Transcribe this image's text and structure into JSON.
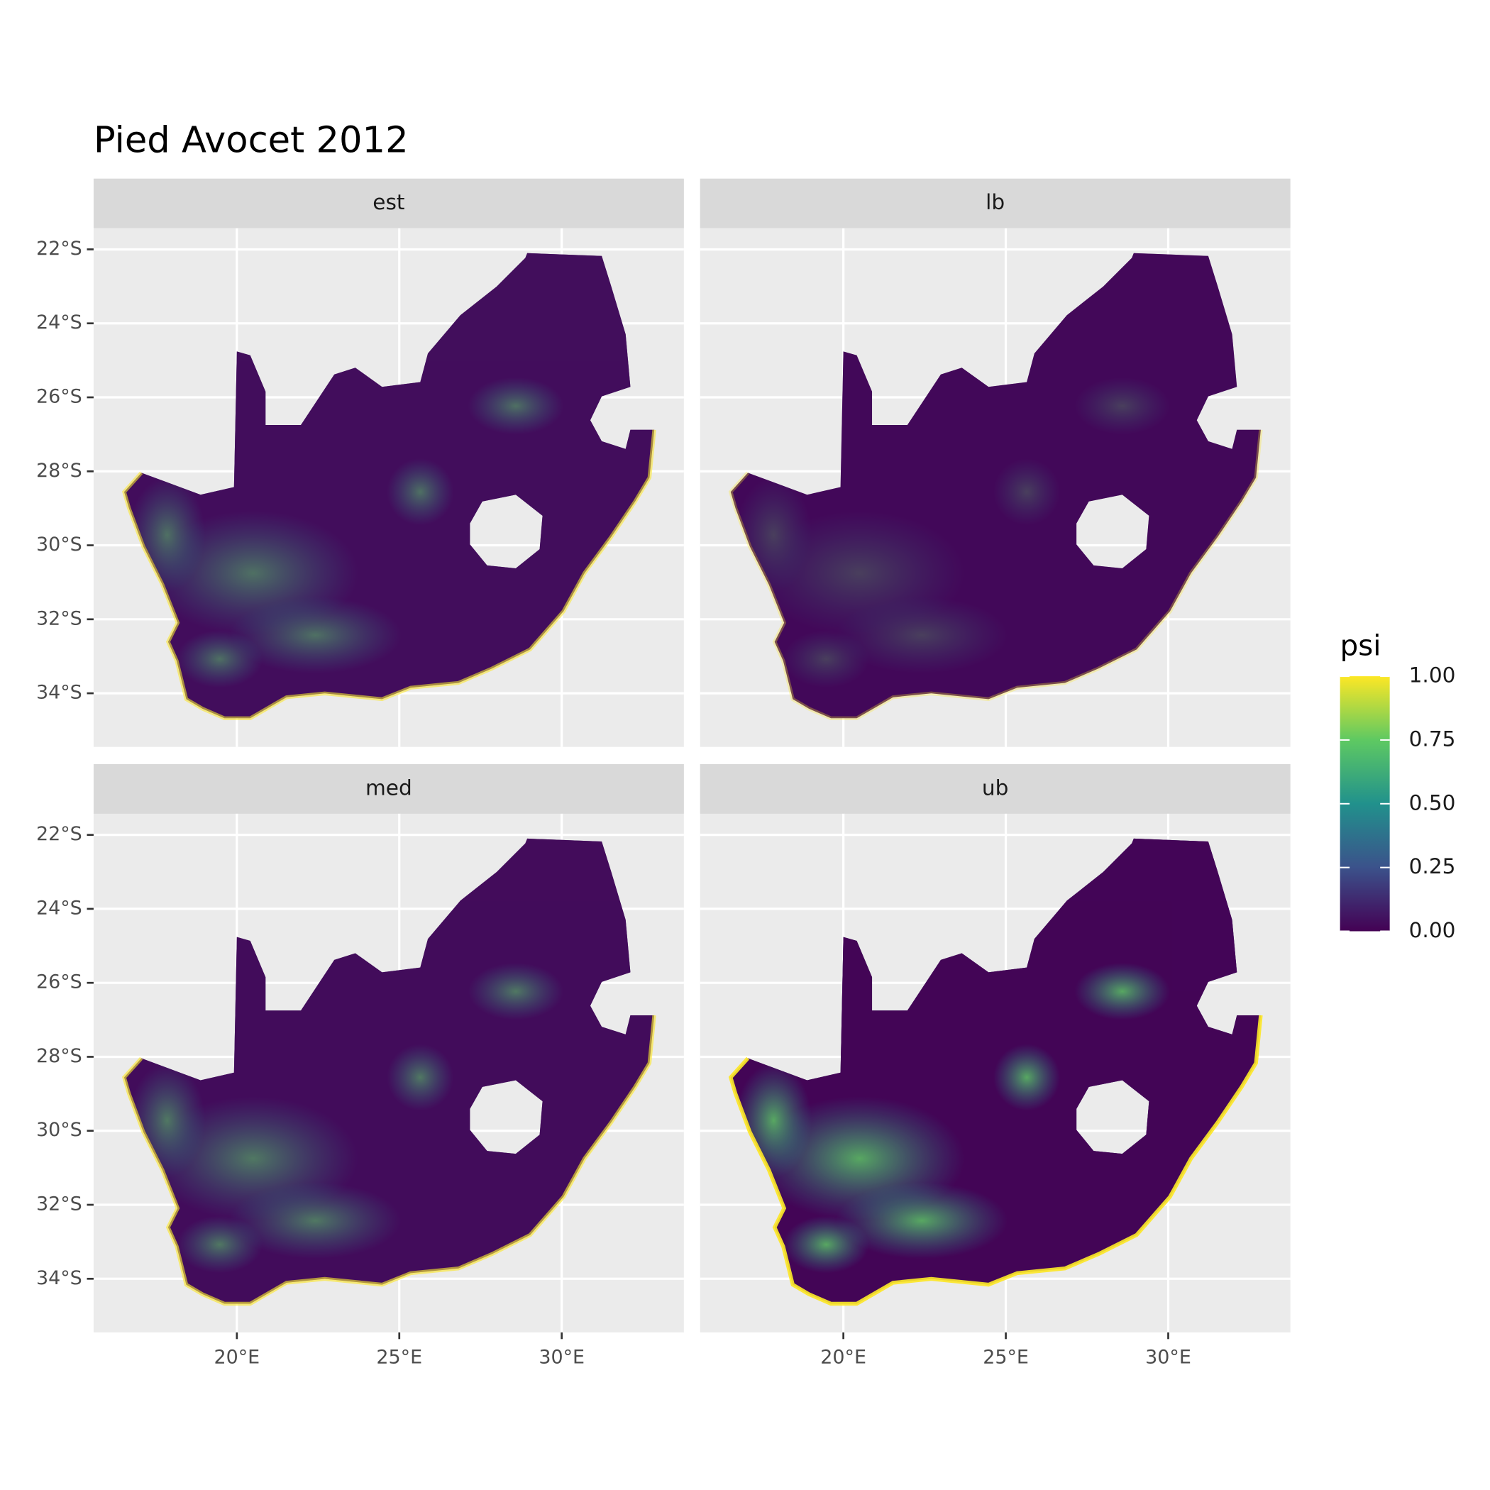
{
  "chart_data": {
    "type": "raster-map",
    "title": "Pied Avocet 2012",
    "panels": [
      "est",
      "lb",
      "med",
      "ub"
    ],
    "xlim": [
      15.59,
      33.76
    ],
    "ylim": [
      -35.45,
      -21.43
    ],
    "xticks": [
      {
        "value": 20,
        "label": "20°E"
      },
      {
        "value": 25,
        "label": "25°E"
      },
      {
        "value": 30,
        "label": "30°E"
      }
    ],
    "yticks": [
      {
        "value": -22,
        "label": "22°S"
      },
      {
        "value": -24,
        "label": "24°S"
      },
      {
        "value": -26,
        "label": "26°S"
      },
      {
        "value": -28,
        "label": "28°S"
      },
      {
        "value": -30,
        "label": "30°S"
      },
      {
        "value": -32,
        "label": "32°S"
      },
      {
        "value": -34,
        "label": "34°S"
      }
    ],
    "grid": true,
    "legend": {
      "title": "psi",
      "colors": [
        "#440154",
        "#3b528b",
        "#21918c",
        "#5ec962",
        "#fde725"
      ],
      "lim": [
        0,
        1
      ],
      "ticks": [
        {
          "value": 0,
          "label": "0.00"
        },
        0.25,
        {
          "value": 0.5,
          "label": "0.50"
        },
        0.75,
        {
          "value": 1,
          "label": "1.00"
        }
      ]
    }
  }
}
